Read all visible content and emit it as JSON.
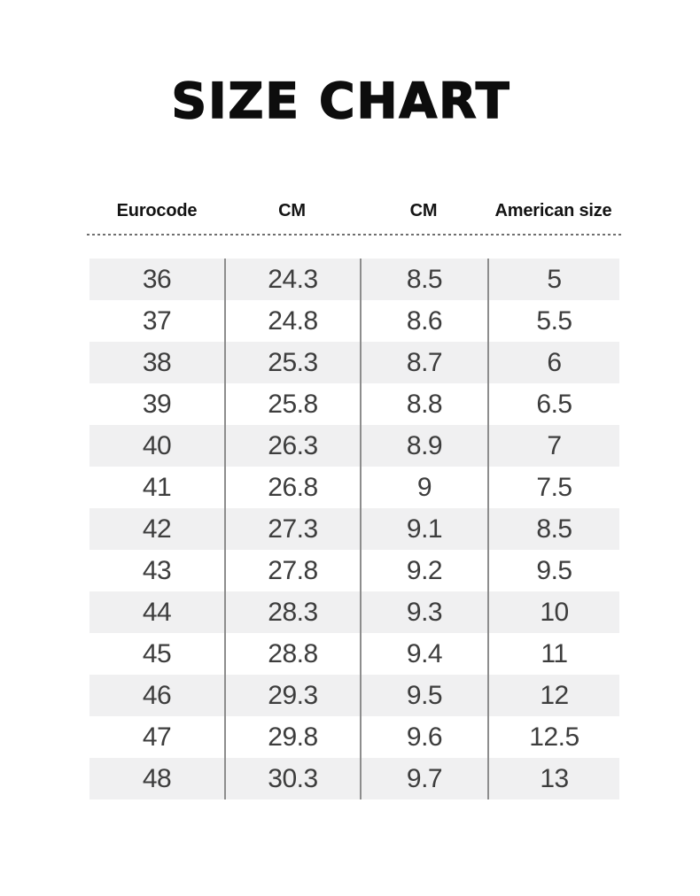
{
  "page_title": "SIZE CHART",
  "chart_data": {
    "type": "table",
    "title": "SIZE CHART",
    "columns": [
      "Eurocode",
      "CM",
      "CM",
      "American size"
    ],
    "rows": [
      [
        "36",
        "24.3",
        "8.5",
        "5"
      ],
      [
        "37",
        "24.8",
        "8.6",
        "5.5"
      ],
      [
        "38",
        "25.3",
        "8.7",
        "6"
      ],
      [
        "39",
        "25.8",
        "8.8",
        "6.5"
      ],
      [
        "40",
        "26.3",
        "8.9",
        "7"
      ],
      [
        "41",
        "26.8",
        "9",
        "7.5"
      ],
      [
        "42",
        "27.3",
        "9.1",
        "8.5"
      ],
      [
        "43",
        "27.8",
        "9.2",
        "9.5"
      ],
      [
        "44",
        "28.3",
        "9.3",
        "10"
      ],
      [
        "45",
        "28.8",
        "9.4",
        "11"
      ],
      [
        "46",
        "29.3",
        "9.5",
        "12"
      ],
      [
        "47",
        "29.8",
        "9.6",
        "12.5"
      ],
      [
        "48",
        "30.3",
        "9.7",
        "13"
      ]
    ],
    "layout": {
      "row_alternating_shading": true,
      "first_row_shaded": true,
      "column_dividers": true,
      "header_separator": "dashed-line",
      "legend": "none",
      "grid": "off"
    }
  },
  "style": {
    "row_alt_bg": "#f0f0f1",
    "divider": "#8d8d8d",
    "cell_text": "#3d3d3d",
    "header_text": "#141414",
    "title_color": "#0d0d0d",
    "dash_color": "#6f6f6f",
    "background": "#ffffff"
  }
}
